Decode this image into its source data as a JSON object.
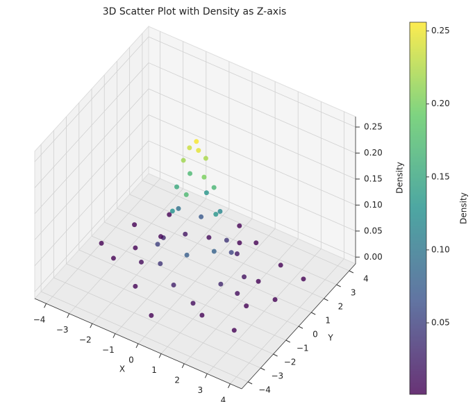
{
  "chart_data": {
    "type": "scatter3d",
    "title": "3D Scatter Plot with Density as Z-axis",
    "xlabel": "X",
    "ylabel": "Y",
    "zlabel": "Density",
    "colorbar_label": "Density",
    "x": [
      0.0,
      0.2,
      -0.3,
      0.3,
      -0.4,
      0.5,
      -0.5,
      0.6,
      0.0,
      -0.8,
      0.9,
      0.0,
      -0.6,
      0.7,
      -1.0,
      1.1,
      0.3,
      -0.4,
      1.3,
      -1.3,
      0.6,
      -0.8,
      1.5,
      -1.6,
      0.0,
      1.0,
      -1.2,
      1.8,
      -1.9,
      0.9,
      2.0,
      -0.5,
      2.2,
      -2.1,
      1.4,
      -1.5,
      2.5,
      -2.6,
      0.5,
      -3.0,
      3.2,
      -0.2,
      1.0,
      -3.3,
      2.8,
      3.5,
      -2.5,
      2.4,
      -3.8,
      0.0
    ],
    "y": [
      0.1,
      -0.1,
      0.1,
      0.3,
      -0.2,
      -0.2,
      0.5,
      0.4,
      -0.7,
      0.0,
      0.0,
      0.9,
      -0.7,
      0.7,
      0.5,
      -0.5,
      -1.2,
      1.2,
      0.5,
      -0.6,
      1.4,
      -1.3,
      -0.7,
      0.4,
      -1.7,
      1.5,
      1.4,
      0.6,
      -0.8,
      -1.8,
      -0.3,
      2.0,
      1.0,
      1.1,
      -2.0,
      -2.0,
      -0.5,
      0.0,
      2.6,
      -1.0,
      0.5,
      -3.1,
      3.0,
      1.2,
      -2.0,
      2.2,
      2.5,
      2.4,
      -0.5,
      3.5
    ],
    "z": [
      0.253,
      0.245,
      0.235,
      0.221,
      0.217,
      0.202,
      0.171,
      0.168,
      0.172,
      0.153,
      0.133,
      0.133,
      0.129,
      0.116,
      0.094,
      0.079,
      0.075,
      0.071,
      0.054,
      0.049,
      0.04,
      0.04,
      0.029,
      0.029,
      0.025,
      0.019,
      0.017,
      0.014,
      0.0085,
      0.01,
      0.01,
      0.008,
      0.0024,
      0.003,
      0.002,
      0.0017,
      0.001,
      0.001,
      0.001,
      0.0,
      0.0,
      0.0,
      0.0,
      0.0,
      0.0,
      0.0,
      0.0,
      0.0,
      0.0,
      0.0
    ],
    "colormap": "viridis",
    "alpha": 0.8,
    "xlim": [
      -4.5,
      4.5
    ],
    "ylim": [
      -4.5,
      4.5
    ],
    "zlim": [
      -0.013,
      0.27
    ],
    "xticks": [
      {
        "value": -4,
        "label": "−4"
      },
      {
        "value": -3,
        "label": "−3"
      },
      {
        "value": -2,
        "label": "−2"
      },
      {
        "value": -1,
        "label": "−1"
      },
      0,
      1,
      2,
      3,
      4
    ],
    "yticks": [
      {
        "value": -4,
        "label": "−4"
      },
      {
        "value": -3,
        "label": "−3"
      },
      {
        "value": -2,
        "label": "−2"
      },
      {
        "value": -1,
        "label": "−1"
      },
      0,
      1,
      2,
      3,
      4
    ],
    "zticks": [
      {
        "value": 0,
        "label": "0.00"
      },
      0.05,
      {
        "value": 0.1,
        "label": "0.10"
      },
      0.15,
      {
        "value": 0.2,
        "label": "0.20"
      },
      0.25
    ],
    "clim": [
      0.001,
      0.256
    ],
    "cticks": [
      0.05,
      {
        "value": 0.1,
        "label": "0.10"
      },
      0.15,
      {
        "value": 0.2,
        "label": "0.20"
      },
      0.25
    ],
    "grid": true
  }
}
